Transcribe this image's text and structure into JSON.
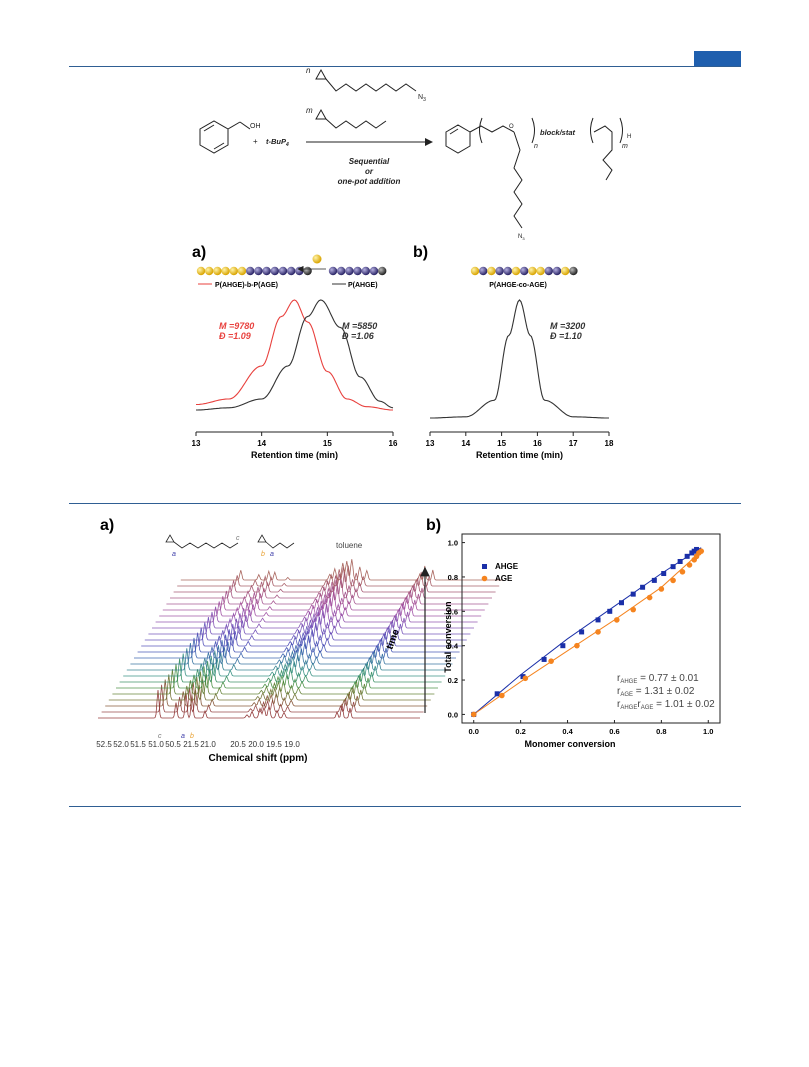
{
  "scheme": {
    "reagent_n": "n",
    "reagent_m": "m",
    "n3": "N",
    "n3_sub": "3",
    "oh": "OH",
    "plus": "+",
    "base": "t-BuP",
    "base_sub": "4",
    "cond1": "Sequential",
    "cond2": "or",
    "cond3": "one-pot addition",
    "link": "block/stat",
    "idx_n": "n",
    "idx_m": "m",
    "h": "H",
    "o": "O"
  },
  "sec": {
    "a_label": "a)",
    "a_legend_red": "P(AHGE)-b-P(AGE)",
    "a_legend_black": "P(AHGE)",
    "a_mn_red": "M  =9780",
    "a_d_red": "Đ  =1.09",
    "a_mn_black": "M  =5850",
    "a_d_black": "Đ  =1.06",
    "b_label": "b)",
    "b_legend": "P(AHGE-co-AGE)",
    "b_mn": "M  =3200",
    "b_d": "Đ  =1.10",
    "xlabel": "Retention time (min)"
  },
  "sec_chart_data": [
    {
      "type": "line",
      "xlabel": "Retention time (min)",
      "xlim": [
        13,
        16
      ],
      "xticks": [
        "13",
        "14",
        "15",
        "16"
      ],
      "series": [
        {
          "name": "P(AHGE)-b-P(AGE)",
          "color": "#e8413e",
          "peak_x": 14.5,
          "x": [
            13.0,
            13.5,
            14.0,
            14.3,
            14.5,
            14.7,
            15.0,
            15.3,
            15.6,
            16.0
          ],
          "y": [
            0.05,
            0.1,
            0.4,
            0.85,
            1.0,
            0.8,
            0.35,
            0.1,
            0.03,
            0.0
          ]
        },
        {
          "name": "P(AHGE)",
          "color": "#333333",
          "peak_x": 14.9,
          "x": [
            13.0,
            13.5,
            14.0,
            14.4,
            14.7,
            14.9,
            15.2,
            15.5,
            15.8,
            16.0
          ],
          "y": [
            0.0,
            0.02,
            0.1,
            0.4,
            0.85,
            1.0,
            0.75,
            0.3,
            0.08,
            0.02
          ]
        }
      ]
    },
    {
      "type": "line",
      "xlabel": "Retention time (min)",
      "xlim": [
        13,
        18
      ],
      "xticks": [
        "13",
        "14",
        "15",
        "16",
        "17",
        "18"
      ],
      "series": [
        {
          "name": "P(AHGE-co-AGE)",
          "color": "#333333",
          "peak_x": 15.5,
          "x": [
            13.0,
            14.0,
            14.8,
            15.2,
            15.5,
            15.8,
            16.2,
            17.0,
            18.0
          ],
          "y": [
            0.0,
            0.01,
            0.15,
            0.7,
            1.0,
            0.7,
            0.15,
            0.01,
            0.0
          ]
        }
      ]
    }
  ],
  "nmr": {
    "label": "a)",
    "toluene": "toluene",
    "time": "time",
    "xlabel": "Chemical shift (ppm)",
    "ticks": [
      "52.5",
      "52.0",
      "51.5",
      "51.0",
      "50.5",
      "21.5",
      "21.0",
      "20.5",
      "20.0",
      "19.5",
      "19.0"
    ],
    "peak_c": "c",
    "peak_a": "a",
    "peak_b": "b",
    "n_spectra": 24
  },
  "conv": {
    "label": "b)",
    "xlabel": "Monomer conversion",
    "ylabel": "Total conversion",
    "legend_ahge": "AHGE",
    "legend_age": "AGE",
    "r1": "r",
    "r1_sub": "AHGE",
    "r1_val": " = 0.77 ± 0.01",
    "r2": "r",
    "r2_sub": "AGE",
    "r2_val": " = 1.31 ± 0.02",
    "r3a": "r",
    "r3a_sub": "AHGE",
    "r3b": "r",
    "r3b_sub": "AGE",
    "r3_val": " = 1.01 ± 0.02",
    "ahge_color": "#1a2fa8",
    "age_color": "#f5841f"
  },
  "conv_chart_data": {
    "type": "scatter",
    "xlabel": "Monomer conversion",
    "ylabel": "Total conversion",
    "xlim": [
      -0.05,
      1.05
    ],
    "ylim": [
      -0.05,
      1.05
    ],
    "xticks": [
      "0.0",
      "0.2",
      "0.4",
      "0.6",
      "0.8",
      "1.0"
    ],
    "yticks": [
      "0.0",
      "0.2",
      "0.4",
      "0.6",
      "0.8",
      "1.0"
    ],
    "series": [
      {
        "name": "AHGE",
        "marker": "square",
        "color": "#1a2fa8",
        "x": [
          0.0,
          0.1,
          0.21,
          0.3,
          0.38,
          0.46,
          0.53,
          0.58,
          0.63,
          0.68,
          0.72,
          0.77,
          0.81,
          0.85,
          0.88,
          0.91,
          0.93,
          0.94,
          0.95
        ],
        "y": [
          0.0,
          0.12,
          0.22,
          0.32,
          0.4,
          0.48,
          0.55,
          0.6,
          0.65,
          0.7,
          0.74,
          0.78,
          0.82,
          0.86,
          0.89,
          0.92,
          0.94,
          0.95,
          0.96
        ]
      },
      {
        "name": "AGE",
        "marker": "circle",
        "color": "#f5841f",
        "x": [
          0.0,
          0.12,
          0.22,
          0.33,
          0.44,
          0.53,
          0.61,
          0.68,
          0.75,
          0.8,
          0.85,
          0.89,
          0.92,
          0.94,
          0.95,
          0.96,
          0.97
        ],
        "y": [
          0.0,
          0.11,
          0.21,
          0.31,
          0.4,
          0.48,
          0.55,
          0.61,
          0.68,
          0.73,
          0.78,
          0.83,
          0.87,
          0.9,
          0.92,
          0.94,
          0.95
        ]
      }
    ],
    "fits": [
      {
        "name": "AHGE",
        "x": [
          0.0,
          0.2,
          0.4,
          0.6,
          0.8,
          0.97
        ],
        "y": [
          0.0,
          0.23,
          0.44,
          0.63,
          0.82,
          0.97
        ]
      },
      {
        "name": "AGE",
        "x": [
          0.0,
          0.2,
          0.4,
          0.6,
          0.8,
          0.97
        ],
        "y": [
          0.0,
          0.19,
          0.37,
          0.55,
          0.74,
          0.95
        ]
      }
    ]
  }
}
